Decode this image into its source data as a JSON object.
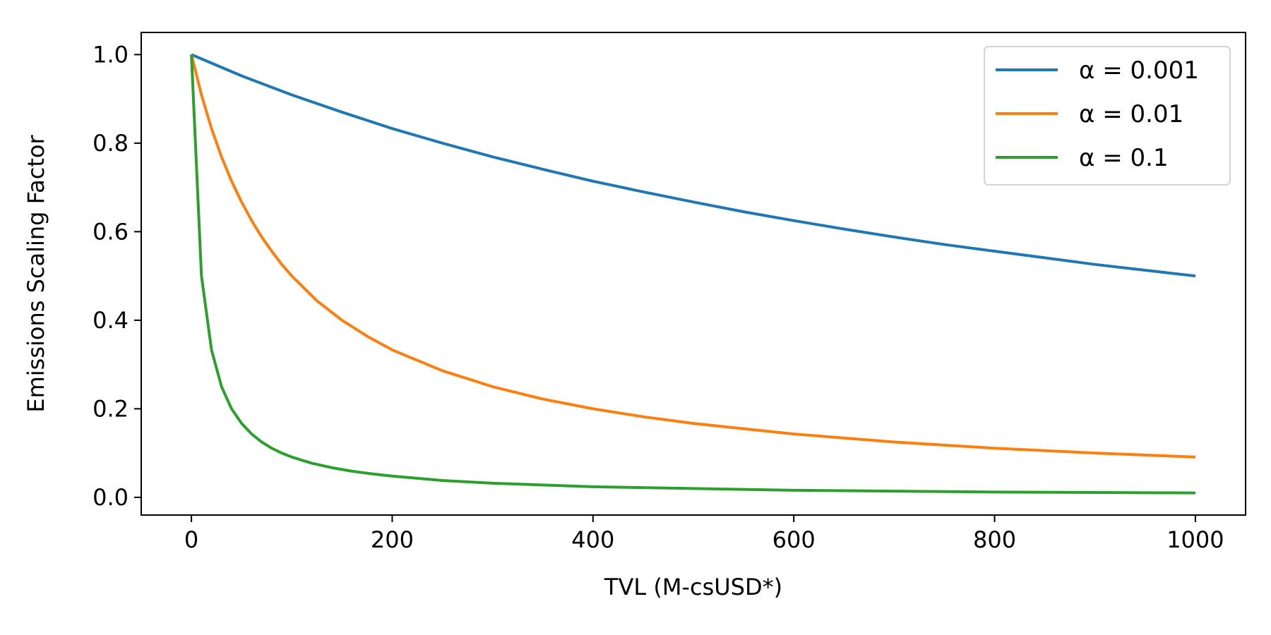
{
  "chart_data": {
    "type": "line",
    "title": "",
    "xlabel": "TVL (M-csUSD*)",
    "ylabel": "Emissions Scaling Factor",
    "xlim": [
      -50,
      1050
    ],
    "ylim": [
      -0.04,
      1.05
    ],
    "xticks": [
      0,
      200,
      400,
      600,
      800,
      1000
    ],
    "yticks": [
      0.0,
      0.2,
      0.4,
      0.6,
      0.8,
      1.0
    ],
    "xtick_labels": [
      "0",
      "200",
      "400",
      "600",
      "800",
      "1000"
    ],
    "ytick_labels": [
      "0.0",
      "0.2",
      "0.4",
      "0.6",
      "0.8",
      "1.0"
    ],
    "grid": false,
    "legend": "top-right",
    "series": [
      {
        "name": "α = 0.001",
        "color": "#1f77b4",
        "x": [
          0,
          50,
          100,
          150,
          200,
          250,
          300,
          350,
          400,
          450,
          500,
          550,
          600,
          650,
          700,
          750,
          800,
          850,
          900,
          950,
          1000
        ],
        "values": [
          1.0,
          0.952,
          0.909,
          0.87,
          0.833,
          0.8,
          0.769,
          0.741,
          0.714,
          0.69,
          0.667,
          0.645,
          0.625,
          0.606,
          0.588,
          0.571,
          0.556,
          0.541,
          0.526,
          0.513,
          0.5
        ]
      },
      {
        "name": "α = 0.01",
        "color": "#ff7f0e",
        "x": [
          0,
          10,
          20,
          30,
          40,
          50,
          60,
          70,
          80,
          90,
          100,
          125,
          150,
          175,
          200,
          250,
          300,
          350,
          400,
          450,
          500,
          600,
          700,
          800,
          900,
          1000
        ],
        "values": [
          1.0,
          0.909,
          0.833,
          0.769,
          0.714,
          0.667,
          0.625,
          0.588,
          0.556,
          0.526,
          0.5,
          0.444,
          0.4,
          0.364,
          0.333,
          0.286,
          0.25,
          0.222,
          0.2,
          0.182,
          0.167,
          0.143,
          0.125,
          0.111,
          0.1,
          0.091
        ]
      },
      {
        "name": "α = 0.1",
        "color": "#2ca02c",
        "x": [
          0,
          10,
          20,
          30,
          40,
          50,
          60,
          70,
          80,
          90,
          100,
          120,
          140,
          160,
          180,
          200,
          250,
          300,
          350,
          400,
          500,
          600,
          700,
          800,
          900,
          1000
        ],
        "values": [
          1.0,
          0.5,
          0.333,
          0.25,
          0.2,
          0.167,
          0.143,
          0.125,
          0.111,
          0.1,
          0.091,
          0.077,
          0.067,
          0.059,
          0.053,
          0.048,
          0.038,
          0.032,
          0.028,
          0.024,
          0.02,
          0.016,
          0.014,
          0.012,
          0.011,
          0.01
        ]
      }
    ]
  }
}
